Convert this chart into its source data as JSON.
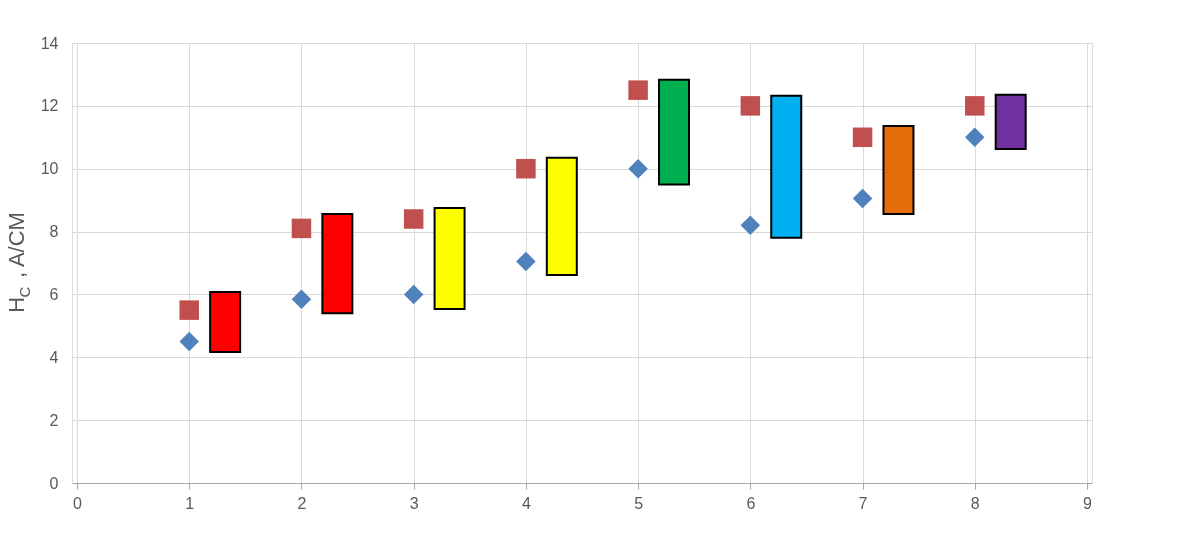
{
  "chart_data": {
    "type": "scatter",
    "ylabel": "H$_{C}$ , A/CM",
    "xlim": [
      0,
      9
    ],
    "xticks": [
      0,
      1,
      2,
      3,
      4,
      5,
      6,
      7,
      8,
      9
    ],
    "ylim": [
      0,
      14
    ],
    "yticks": [
      0,
      2,
      4,
      6,
      8,
      10,
      12,
      14
    ],
    "grid": true,
    "series": [
      {
        "type": "bar",
        "x": [
          1.32,
          2.32,
          3.32,
          4.32,
          5.32,
          6.32,
          7.32,
          8.32
        ],
        "base": [
          4.17,
          5.4,
          5.54,
          6.62,
          9.5,
          7.8,
          8.56,
          10.63
        ],
        "values": [
          1.91,
          3.16,
          3.21,
          3.73,
          3.33,
          4.52,
          2.8,
          1.72
        ],
        "colors": [
          "#ff0000",
          "#ff0000",
          "#ffff00",
          "#ffff00",
          "#00b050",
          "#00b0f0",
          "#e46c0a",
          "#7030a0"
        ]
      },
      {
        "marker": "diamond",
        "color": "#4f81bd",
        "x": [
          1,
          2,
          3,
          4,
          5,
          6,
          7,
          8
        ],
        "values": [
          4.5,
          5.85,
          6.0,
          7.05,
          10.0,
          8.2,
          9.05,
          11.0
        ]
      },
      {
        "marker": "square",
        "color": "#c0504d",
        "x": [
          1,
          2,
          3,
          4,
          5,
          6,
          7,
          8
        ],
        "values": [
          5.5,
          8.1,
          8.4,
          10.0,
          12.5,
          12.0,
          11.0,
          12.0
        ]
      }
    ]
  }
}
